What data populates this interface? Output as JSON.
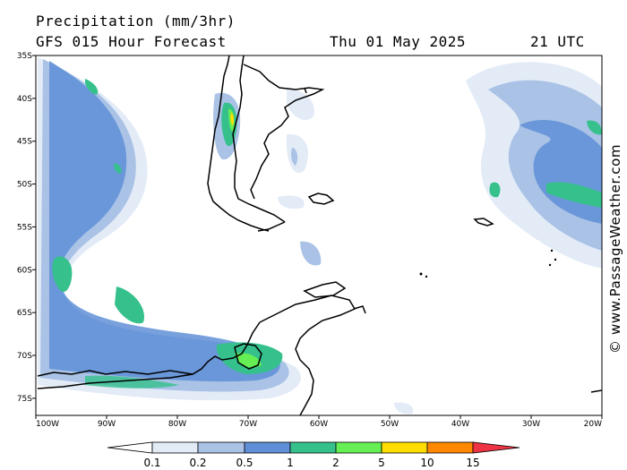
{
  "header": {
    "title": "Precipitation (mm/3hr)",
    "subtitle": "GFS 015 Hour Forecast",
    "date": "Thu 01 May 2025",
    "time": "21 UTC"
  },
  "credit": "© www.PassageWeather.com",
  "map": {
    "lon_range": [
      -100,
      -20
    ],
    "lat_range": [
      -77,
      -35
    ],
    "lat_ticks": [
      {
        "value": -35,
        "label": "35S"
      },
      {
        "value": -40,
        "label": "40S"
      },
      {
        "value": -45,
        "label": "45S"
      },
      {
        "value": -50,
        "label": "50S"
      },
      {
        "value": -55,
        "label": "55S"
      },
      {
        "value": -60,
        "label": "60S"
      },
      {
        "value": -65,
        "label": "65S"
      },
      {
        "value": -70,
        "label": "70S"
      },
      {
        "value": -75,
        "label": "75S"
      }
    ],
    "lon_ticks": [
      {
        "value": -100,
        "label": "100W"
      },
      {
        "value": -90,
        "label": "90W"
      },
      {
        "value": -80,
        "label": "80W"
      },
      {
        "value": -70,
        "label": "70W"
      },
      {
        "value": -60,
        "label": "60W"
      },
      {
        "value": -50,
        "label": "50W"
      },
      {
        "value": -40,
        "label": "40W"
      },
      {
        "value": -30,
        "label": "30W"
      },
      {
        "value": -20,
        "label": "20W"
      }
    ]
  },
  "legend": {
    "levels": [
      "0.1",
      "0.2",
      "0.5",
      "1",
      "2",
      "5",
      "10",
      "15"
    ],
    "colors": [
      "#ffffff",
      "#e3ebf7",
      "#a9c2e6",
      "#5f8fd6",
      "#35c08c",
      "#66ee55",
      "#ffdd00",
      "#ff8800",
      "#ee3344"
    ]
  }
}
